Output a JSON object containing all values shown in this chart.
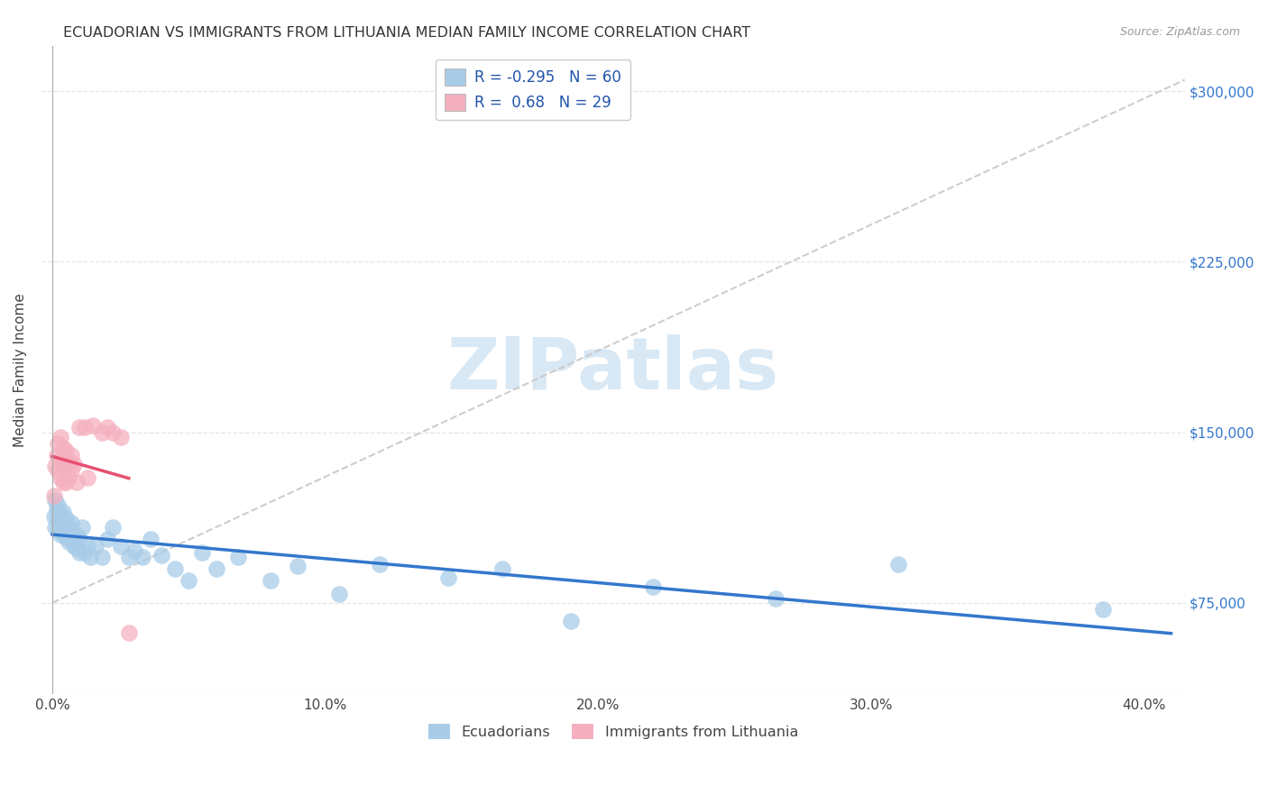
{
  "title": "ECUADORIAN VS IMMIGRANTS FROM LITHUANIA MEDIAN FAMILY INCOME CORRELATION CHART",
  "source": "Source: ZipAtlas.com",
  "ylabel": "Median Family Income",
  "ytick_labels": [
    "$75,000",
    "$150,000",
    "$225,000",
    "$300,000"
  ],
  "ytick_vals": [
    75000,
    150000,
    225000,
    300000
  ],
  "xlabel_ticks": [
    "0.0%",
    "10.0%",
    "20.0%",
    "30.0%",
    "40.0%"
  ],
  "xlabel_vals": [
    0.0,
    0.1,
    0.2,
    0.3,
    0.4
  ],
  "ymin": 35000,
  "ymax": 320000,
  "xmin": -0.004,
  "xmax": 0.415,
  "blue_R": -0.295,
  "blue_N": 60,
  "pink_R": 0.68,
  "pink_N": 29,
  "blue_color": "#a8cce8",
  "pink_color": "#f5b0c0",
  "blue_line_color": "#3377cc",
  "pink_line_color": "#e85070",
  "dashed_line_color": "#c8c8c8",
  "watermark_text": "ZIPatlas",
  "watermark_color": "#d8e8f5",
  "legend_label_blue": "Ecuadorians",
  "legend_label_pink": "Immigrants from Lithuania",
  "background_color": "#ffffff",
  "grid_color": "#e5e5e5",
  "blue_x": [
    0.0005,
    0.001,
    0.001,
    0.0015,
    0.002,
    0.002,
    0.002,
    0.003,
    0.003,
    0.003,
    0.003,
    0.004,
    0.004,
    0.004,
    0.005,
    0.005,
    0.005,
    0.005,
    0.006,
    0.006,
    0.006,
    0.007,
    0.007,
    0.007,
    0.008,
    0.008,
    0.009,
    0.009,
    0.01,
    0.01,
    0.011,
    0.012,
    0.013,
    0.014,
    0.016,
    0.018,
    0.02,
    0.022,
    0.025,
    0.028,
    0.03,
    0.033,
    0.036,
    0.04,
    0.045,
    0.05,
    0.055,
    0.06,
    0.068,
    0.08,
    0.09,
    0.105,
    0.12,
    0.145,
    0.165,
    0.19,
    0.22,
    0.265,
    0.31,
    0.385
  ],
  "blue_y": [
    113000,
    120000,
    108000,
    116000,
    112000,
    107000,
    118000,
    105000,
    110000,
    114000,
    108000,
    112000,
    106000,
    115000,
    109000,
    104000,
    112000,
    106000,
    105000,
    109000,
    102000,
    107000,
    103000,
    110000,
    100000,
    104000,
    99000,
    105000,
    97000,
    103000,
    108000,
    97000,
    100000,
    95000,
    100000,
    95000,
    103000,
    108000,
    100000,
    95000,
    98000,
    95000,
    103000,
    96000,
    90000,
    85000,
    97000,
    90000,
    95000,
    85000,
    91000,
    79000,
    92000,
    86000,
    90000,
    67000,
    82000,
    77000,
    92000,
    72000
  ],
  "pink_x": [
    0.0005,
    0.001,
    0.0015,
    0.002,
    0.002,
    0.003,
    0.003,
    0.003,
    0.004,
    0.004,
    0.004,
    0.005,
    0.005,
    0.005,
    0.006,
    0.006,
    0.007,
    0.007,
    0.008,
    0.009,
    0.01,
    0.012,
    0.013,
    0.015,
    0.018,
    0.02,
    0.022,
    0.025,
    0.028
  ],
  "pink_y": [
    122000,
    135000,
    140000,
    145000,
    133000,
    148000,
    138000,
    130000,
    143000,
    136000,
    128000,
    142000,
    135000,
    128000,
    137000,
    130000,
    140000,
    133000,
    136000,
    128000,
    152000,
    152000,
    130000,
    153000,
    150000,
    152000,
    150000,
    148000,
    62000
  ]
}
